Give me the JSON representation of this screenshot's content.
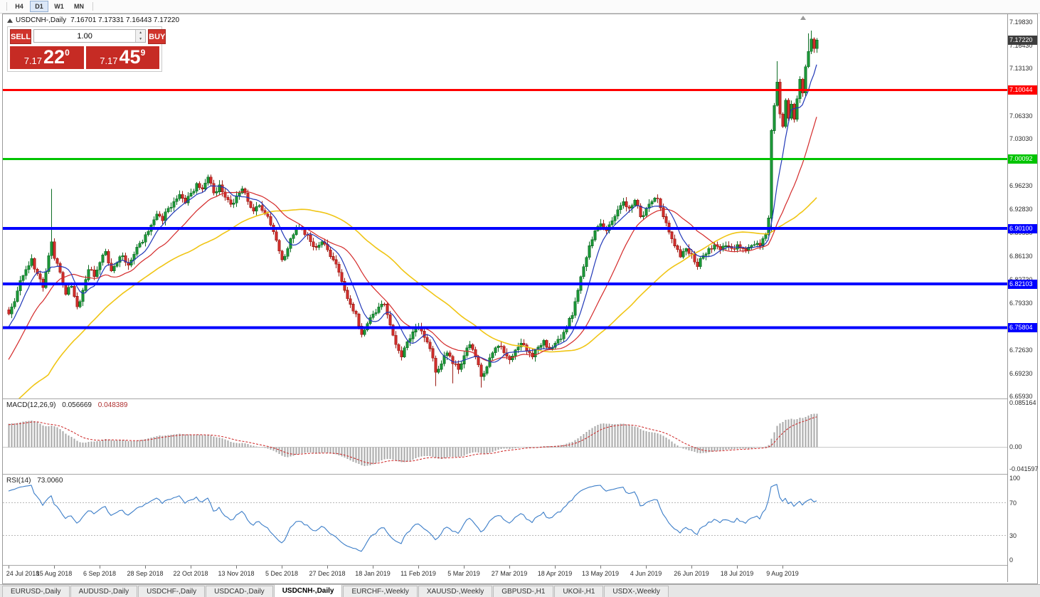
{
  "toolbar": {
    "timeframes": [
      {
        "label": "H4",
        "active": false
      },
      {
        "label": "D1",
        "active": true
      },
      {
        "label": "W1",
        "active": false
      },
      {
        "label": "MN",
        "active": false
      }
    ]
  },
  "title_bar": {
    "symbol": "USDCNH-,Daily",
    "ohlc": "7.16701 7.17331 7.16443 7.17220"
  },
  "trade_panel": {
    "sell_label": "SELL",
    "buy_label": "BUY",
    "volume": "1.00",
    "bid": {
      "base": "7.17",
      "pips": "22",
      "point": "0"
    },
    "ask": {
      "base": "7.17",
      "pips": "45",
      "point": "9"
    }
  },
  "indicators": {
    "macd": {
      "name": "MACD(12,26,9)",
      "value_main": "0.056669",
      "value_signal": "0.048389"
    },
    "rsi": {
      "name": "RSI(14)",
      "value": "73.0060"
    }
  },
  "tabs": [
    {
      "label": "EURUSD-,Daily",
      "active": false
    },
    {
      "label": "AUDUSD-,Daily",
      "active": false
    },
    {
      "label": "USDCHF-,Daily",
      "active": false
    },
    {
      "label": "USDCAD-,Daily",
      "active": false
    },
    {
      "label": "USDCNH-,Daily",
      "active": true
    },
    {
      "label": "EURCHF-,Weekly",
      "active": false
    },
    {
      "label": "XAUUSD-,Weekly",
      "active": false
    },
    {
      "label": "GBPUSD-,H1",
      "active": false
    },
    {
      "label": "UKOil-,H1",
      "active": false
    },
    {
      "label": "USDX-,Weekly",
      "active": false
    }
  ],
  "chart_data": {
    "type": "candlestick",
    "symbol": "USDCNH",
    "timeframe": "Daily",
    "x_labels": [
      "24 Jul 2018",
      "15 Aug 2018",
      "6 Sep 2018",
      "28 Sep 2018",
      "22 Oct 2018",
      "13 Nov 2018",
      "5 Dec 2018",
      "27 Dec 2018",
      "18 Jan 2019",
      "11 Feb 2019",
      "5 Mar 2019",
      "27 Mar 2019",
      "18 Apr 2019",
      "13 May 2019",
      "4 Jun 2019",
      "26 Jun 2019",
      "18 Jul 2019",
      "9 Aug 2019"
    ],
    "candles_per_label": 16,
    "price_axis": {
      "max": 7.1983,
      "min": 6.6593,
      "labels": [
        {
          "label": "7.19830",
          "value": 7.1983
        },
        {
          "label": "7.16430",
          "value": 7.1643
        },
        {
          "label": "7.13130",
          "value": 7.1313
        },
        {
          "label": "7.06330",
          "value": 7.0633
        },
        {
          "label": "7.03030",
          "value": 7.0303
        },
        {
          "label": "6.96230",
          "value": 6.9623
        },
        {
          "label": "6.92830",
          "value": 6.9283
        },
        {
          "label": "6.89530",
          "value": 6.8953
        },
        {
          "label": "6.86130",
          "value": 6.8613
        },
        {
          "label": "6.82730",
          "value": 6.8273
        },
        {
          "label": "6.79330",
          "value": 6.7933
        },
        {
          "label": "6.72630",
          "value": 6.7263
        },
        {
          "label": "6.69230",
          "value": 6.6923
        },
        {
          "label": "6.65930",
          "value": 6.6593
        }
      ]
    },
    "current_price_tag": {
      "label": "7.17220",
      "value": 7.1722,
      "color": "#3d3d3d"
    },
    "hlines": [
      {
        "label": "7.10044",
        "price": 7.10044,
        "color": "#ff0000",
        "width": 3
      },
      {
        "label": "7.00092",
        "price": 7.00092,
        "color": "#00c400",
        "width": 3
      },
      {
        "label": "6.90100",
        "price": 6.901,
        "color": "#0000ff",
        "width": 4
      },
      {
        "label": "6.82103",
        "price": 6.82103,
        "color": "#0000ff",
        "width": 4
      },
      {
        "label": "6.75804",
        "price": 6.75804,
        "color": "#0000ff",
        "width": 4
      }
    ],
    "colors": {
      "up_fill": "#1fa33c",
      "up_stroke": "#0e6e25",
      "down_fill": "#e03232",
      "down_stroke": "#9c1d16",
      "macd_bar": "#a8a8a8",
      "macd_signal": "#cc2222",
      "rsi_line": "#3b7dc8",
      "rsi_level": "#b8b8b8"
    },
    "moving_averages": [
      {
        "period": 55,
        "color": "#f0c514",
        "width": 1.6
      },
      {
        "period": 21,
        "color": "#d42a2a",
        "width": 1.2
      },
      {
        "period": 8,
        "color": "#2138b8",
        "width": 1.2
      }
    ],
    "history_seed": {
      "start": 6.5,
      "count": 40
    },
    "price_path_anchors": [
      [
        0,
        6.778
      ],
      [
        2,
        6.796
      ],
      [
        4,
        6.826
      ],
      [
        6,
        6.842
      ],
      [
        8,
        6.858
      ],
      [
        10,
        6.836
      ],
      [
        12,
        6.816
      ],
      [
        14,
        6.862
      ],
      [
        15,
        6.882
      ],
      [
        16,
        6.858
      ],
      [
        18,
        6.838
      ],
      [
        20,
        6.806
      ],
      [
        22,
        6.818
      ],
      [
        24,
        6.788
      ],
      [
        26,
        6.812
      ],
      [
        28,
        6.842
      ],
      [
        30,
        6.832
      ],
      [
        32,
        6.852
      ],
      [
        34,
        6.868
      ],
      [
        36,
        6.84
      ],
      [
        38,
        6.852
      ],
      [
        40,
        6.862
      ],
      [
        42,
        6.848
      ],
      [
        44,
        6.864
      ],
      [
        46,
        6.88
      ],
      [
        48,
        6.892
      ],
      [
        50,
        6.906
      ],
      [
        52,
        6.922
      ],
      [
        54,
        6.912
      ],
      [
        56,
        6.93
      ],
      [
        58,
        6.94
      ],
      [
        60,
        6.95
      ],
      [
        62,
        6.938
      ],
      [
        64,
        6.952
      ],
      [
        66,
        6.966
      ],
      [
        68,
        6.958
      ],
      [
        70,
        6.975
      ],
      [
        72,
        6.952
      ],
      [
        74,
        6.964
      ],
      [
        76,
        6.946
      ],
      [
        78,
        6.936
      ],
      [
        80,
        6.948
      ],
      [
        82,
        6.958
      ],
      [
        84,
        6.94
      ],
      [
        86,
        6.926
      ],
      [
        88,
        6.934
      ],
      [
        90,
        6.922
      ],
      [
        92,
        6.906
      ],
      [
        94,
        6.884
      ],
      [
        96,
        6.856
      ],
      [
        98,
        6.872
      ],
      [
        100,
        6.892
      ],
      [
        102,
        6.902
      ],
      [
        104,
        6.892
      ],
      [
        106,
        6.882
      ],
      [
        108,
        6.874
      ],
      [
        110,
        6.882
      ],
      [
        112,
        6.87
      ],
      [
        114,
        6.856
      ],
      [
        116,
        6.838
      ],
      [
        118,
        6.812
      ],
      [
        120,
        6.792
      ],
      [
        122,
        6.778
      ],
      [
        124,
        6.748
      ],
      [
        126,
        6.764
      ],
      [
        128,
        6.778
      ],
      [
        130,
        6.788
      ],
      [
        132,
        6.792
      ],
      [
        134,
        6.762
      ],
      [
        136,
        6.734
      ],
      [
        138,
        6.716
      ],
      [
        140,
        6.738
      ],
      [
        142,
        6.752
      ],
      [
        144,
        6.76
      ],
      [
        146,
        6.744
      ],
      [
        148,
        6.728
      ],
      [
        150,
        6.694
      ],
      [
        152,
        6.706
      ],
      [
        154,
        6.722
      ],
      [
        156,
        6.706
      ],
      [
        158,
        6.698
      ],
      [
        160,
        6.718
      ],
      [
        162,
        6.734
      ],
      [
        164,
        6.716
      ],
      [
        166,
        6.688
      ],
      [
        168,
        6.702
      ],
      [
        170,
        6.722
      ],
      [
        172,
        6.732
      ],
      [
        174,
        6.722
      ],
      [
        176,
        6.712
      ],
      [
        178,
        6.726
      ],
      [
        180,
        6.736
      ],
      [
        182,
        6.724
      ],
      [
        184,
        6.716
      ],
      [
        186,
        6.73
      ],
      [
        188,
        6.74
      ],
      [
        190,
        6.728
      ],
      [
        192,
        6.736
      ],
      [
        194,
        6.742
      ],
      [
        196,
        6.758
      ],
      [
        198,
        6.776
      ],
      [
        200,
        6.812
      ],
      [
        202,
        6.846
      ],
      [
        204,
        6.876
      ],
      [
        206,
        6.898
      ],
      [
        208,
        6.908
      ],
      [
        210,
        6.898
      ],
      [
        212,
        6.912
      ],
      [
        214,
        6.928
      ],
      [
        216,
        6.94
      ],
      [
        218,
        6.93
      ],
      [
        220,
        6.942
      ],
      [
        222,
        6.918
      ],
      [
        224,
        6.93
      ],
      [
        226,
        6.94
      ],
      [
        228,
        6.944
      ],
      [
        230,
        6.918
      ],
      [
        232,
        6.896
      ],
      [
        234,
        6.876
      ],
      [
        236,
        6.86
      ],
      [
        238,
        6.872
      ],
      [
        240,
        6.864
      ],
      [
        242,
        6.846
      ],
      [
        244,
        6.862
      ],
      [
        246,
        6.872
      ],
      [
        248,
        6.878
      ],
      [
        250,
        6.87
      ],
      [
        252,
        6.876
      ],
      [
        254,
        6.872
      ],
      [
        256,
        6.878
      ],
      [
        258,
        6.872
      ],
      [
        260,
        6.874
      ],
      [
        262,
        6.878
      ],
      [
        264,
        6.876
      ],
      [
        266,
        6.892
      ],
      [
        267,
        6.916
      ],
      [
        268,
        7.042
      ],
      [
        269,
        7.078
      ],
      [
        270,
        7.112
      ],
      [
        271,
        7.066
      ],
      [
        272,
        7.048
      ],
      [
        273,
        7.086
      ],
      [
        274,
        7.06
      ],
      [
        275,
        7.08
      ],
      [
        276,
        7.058
      ],
      [
        277,
        7.088
      ],
      [
        278,
        7.116
      ],
      [
        279,
        7.096
      ],
      [
        280,
        7.134
      ],
      [
        281,
        7.156
      ],
      [
        282,
        7.174
      ],
      [
        283,
        7.16
      ],
      [
        284,
        7.1722
      ]
    ],
    "special_wicks": {
      "15": [
        6.958,
        null
      ],
      "150": [
        null,
        6.674
      ],
      "156": [
        null,
        6.678
      ],
      "166": [
        null,
        6.672
      ],
      "268": [
        null,
        6.896
      ],
      "270": [
        7.142,
        null
      ],
      "281": [
        7.182,
        null
      ],
      "282": [
        7.186,
        null
      ],
      "284": [
        7.1733,
        null
      ]
    },
    "macd_axis": {
      "max": 0.085164,
      "min": -0.041597,
      "labels": [
        {
          "label": "0.085164",
          "value": 0.085164
        },
        {
          "label": "0.00",
          "value": 0
        },
        {
          "label": "-0.041597",
          "value": -0.041597
        }
      ]
    },
    "rsi_axis": {
      "labels": [
        {
          "label": "100",
          "value": 100
        },
        {
          "label": "70",
          "value": 70
        },
        {
          "label": "30",
          "value": 30
        },
        {
          "label": "0",
          "value": 0
        }
      ],
      "levels": [
        70,
        30
      ]
    }
  }
}
